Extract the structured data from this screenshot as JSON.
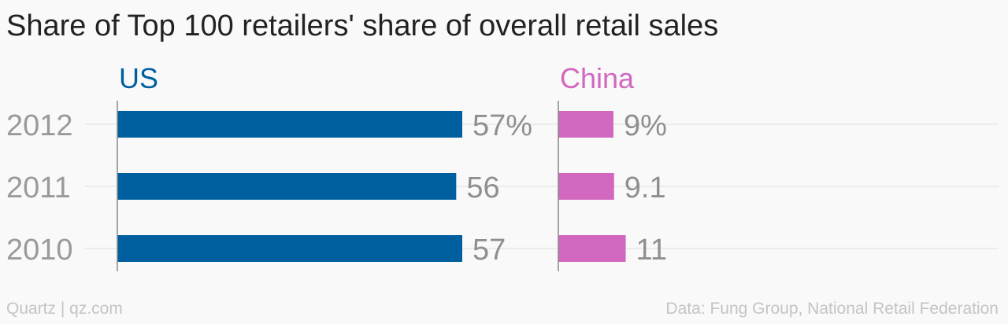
{
  "chart_data": {
    "type": "bar",
    "orientation": "horizontal",
    "title": "Share of Top 100 retailers' share of overall retail sales",
    "categories": [
      "2012",
      "2011",
      "2010"
    ],
    "series": [
      {
        "name": "US",
        "values": [
          57,
          56,
          57
        ],
        "labels": [
          "57%",
          "56",
          "57"
        ],
        "color": "#00609f"
      },
      {
        "name": "China",
        "values": [
          9,
          9.1,
          11
        ],
        "labels": [
          "9%",
          "9.1",
          "11"
        ],
        "color": "#d267bf"
      }
    ],
    "xlim": [
      0,
      100
    ],
    "grid": true,
    "legend": "series labels above each panel"
  },
  "footer": {
    "left": "Quartz | qz.com",
    "right": "Data: Fung Group, National Retail Federation"
  },
  "colors": {
    "gridline": "#e8e8e8",
    "axis": "#888888",
    "text": "#222222"
  }
}
